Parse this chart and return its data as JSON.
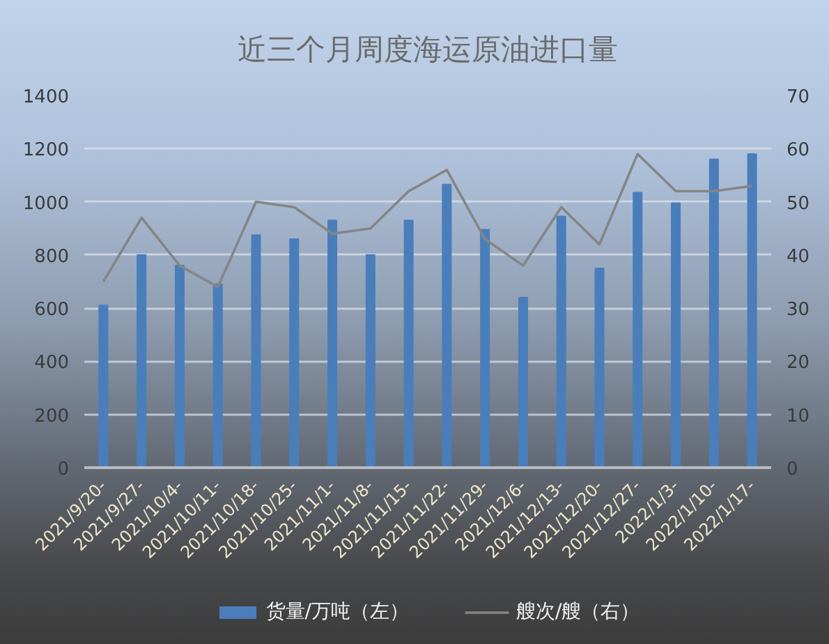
{
  "chart_data": {
    "type": "bar",
    "title": "近三个月周度海运原油进口量",
    "categories": [
      "2021/9/20-",
      "2021/9/27-",
      "2021/10/4-",
      "2021/10/11-",
      "2021/10/18-",
      "2021/10/25-",
      "2021/11/1-",
      "2021/11/8-",
      "2021/11/15-",
      "2021/11/22-",
      "2021/11/29-",
      "2021/12/6-",
      "2021/12/13-",
      "2021/12/20-",
      "2021/12/27-",
      "2022/1/3-",
      "2022/1/10-",
      "2022/1/17-"
    ],
    "series": [
      {
        "name": "货量/万吨（左）",
        "color": "#4a7ebb",
        "values": [
          610,
          800,
          760,
          690,
          875,
          860,
          930,
          800,
          930,
          1065,
          895,
          640,
          945,
          750,
          1035,
          995,
          1160,
          1180
        ]
      },
      {
        "name": "艘次/艘（右）",
        "type": "line",
        "axis": "y2",
        "color": "#858585",
        "values": [
          35,
          47,
          38,
          34,
          50,
          49,
          44,
          45,
          52,
          56,
          43,
          38,
          49,
          42,
          59,
          52,
          52,
          53
        ]
      }
    ],
    "ylim": [
      0,
      1400
    ],
    "yticks": [
      0,
      200,
      400,
      600,
      800,
      1000,
      1200,
      1400
    ],
    "y2lim": [
      0,
      70
    ],
    "y2ticks": [
      0,
      10,
      20,
      30,
      40,
      50,
      60,
      70
    ],
    "grid": "y",
    "legend": "bottom"
  }
}
